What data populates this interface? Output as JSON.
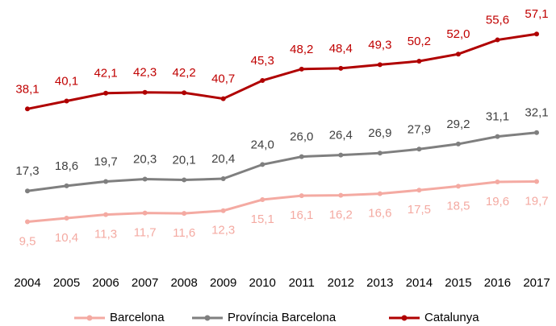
{
  "chart_data": {
    "type": "line",
    "categories": [
      "2004",
      "2005",
      "2006",
      "2007",
      "2008",
      "2009",
      "2010",
      "2011",
      "2012",
      "2013",
      "2014",
      "2015",
      "2016",
      "2017"
    ],
    "ylim": [
      0,
      60
    ],
    "legend": "bottom",
    "series": [
      {
        "name": "Barcelona",
        "color": "#f4aaa2",
        "label_color": "#f4aaa2",
        "label_position": "below",
        "values": [
          9.5,
          10.4,
          11.3,
          11.7,
          11.6,
          12.3,
          15.1,
          16.1,
          16.2,
          16.6,
          17.5,
          18.5,
          19.6,
          19.7
        ],
        "value_labels": [
          "9,5",
          "10,4",
          "11,3",
          "11,7",
          "11,6",
          "12,3",
          "15,1",
          "16,1",
          "16,2",
          "16,6",
          "17,5",
          "18,5",
          "19,6",
          "19,7"
        ]
      },
      {
        "name": "Província Barcelona",
        "color": "#7f7f7f",
        "label_color": "#404040",
        "label_position": "above",
        "values": [
          17.3,
          18.6,
          19.7,
          20.3,
          20.1,
          20.4,
          24.0,
          26.0,
          26.4,
          26.9,
          27.9,
          29.2,
          31.1,
          32.1
        ],
        "value_labels": [
          "17,3",
          "18,6",
          "19,7",
          "20,3",
          "20,1",
          "20,4",
          "24,0",
          "26,0",
          "26,4",
          "26,9",
          "27,9",
          "29,2",
          "31,1",
          "32,1"
        ]
      },
      {
        "name": "Catalunya",
        "color": "#b00000",
        "label_color": "#c00000",
        "label_position": "above",
        "values": [
          38.1,
          40.1,
          42.1,
          42.3,
          42.2,
          40.7,
          45.3,
          48.2,
          48.4,
          49.3,
          50.2,
          52.0,
          55.6,
          57.1
        ],
        "value_labels": [
          "38,1",
          "40,1",
          "42,1",
          "42,3",
          "42,2",
          "40,7",
          "45,3",
          "48,2",
          "48,4",
          "49,3",
          "50,2",
          "52,0",
          "55,6",
          "57,1"
        ]
      }
    ]
  }
}
